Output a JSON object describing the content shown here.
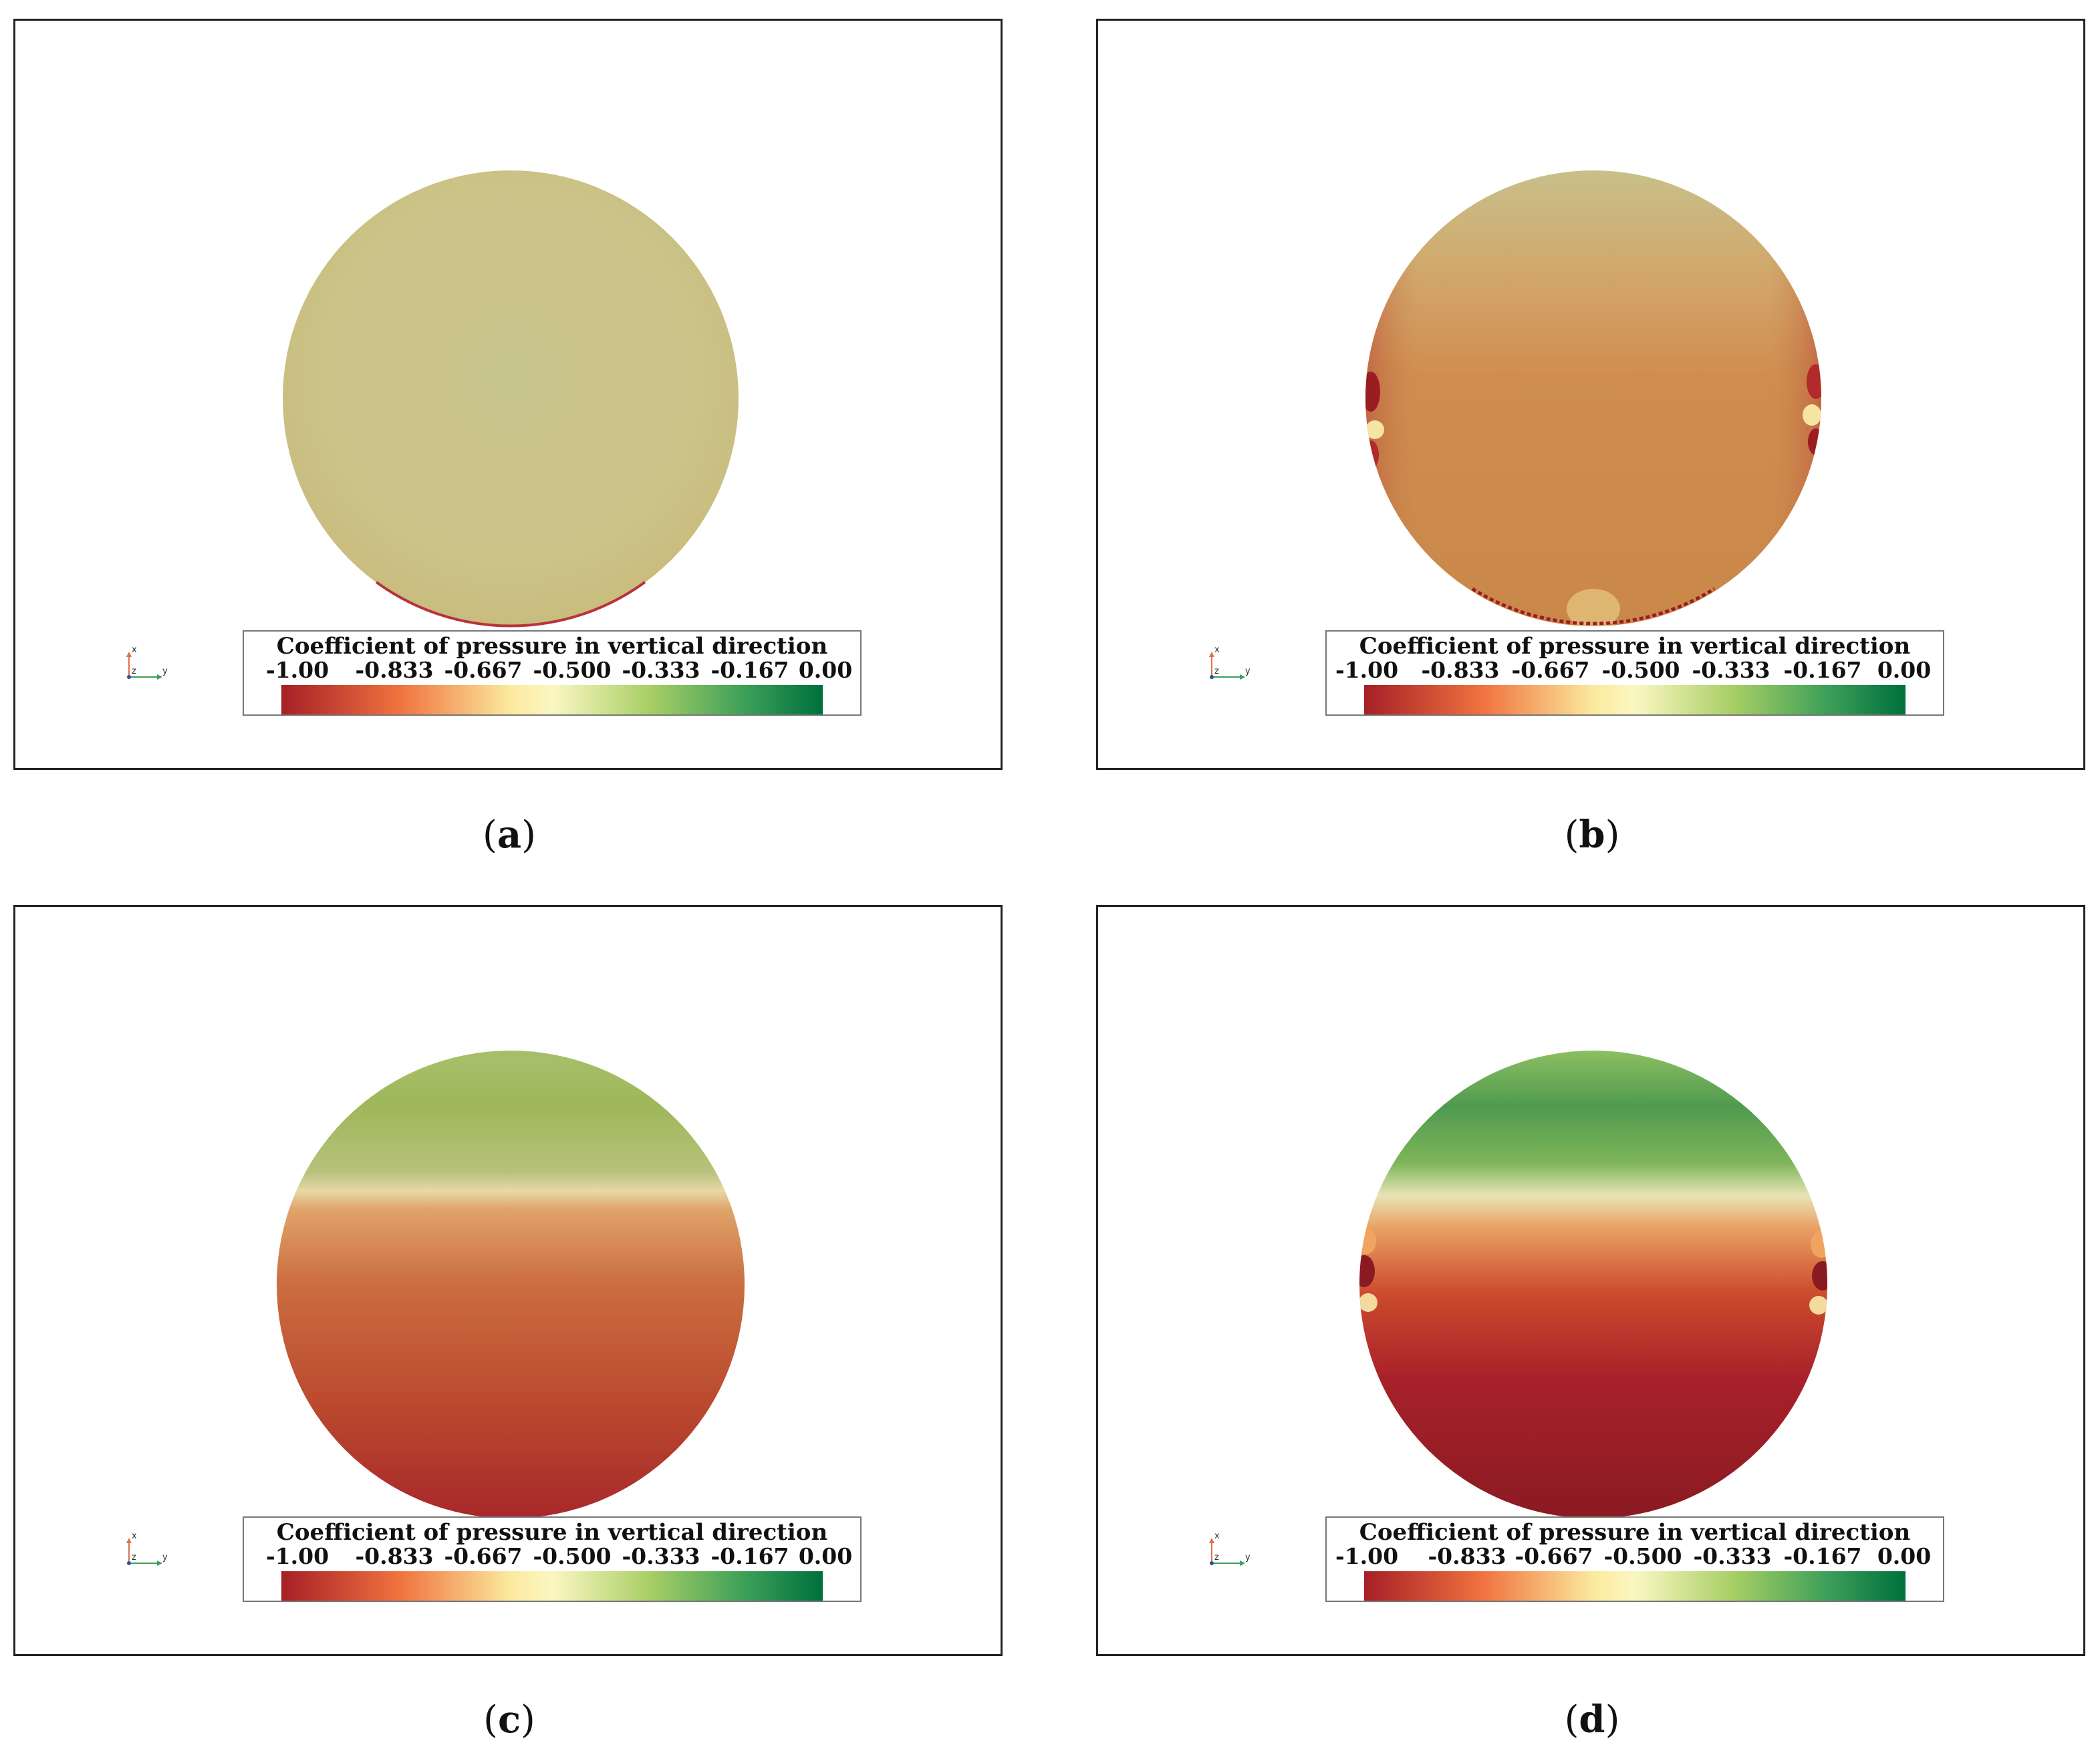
{
  "colors": {
    "scale": [
      "#a51f26",
      "#f0733f",
      "#fbe89c",
      "#fbf7c2",
      "#a9cf66",
      "#3a9e58",
      "#00703c"
    ]
  },
  "legend": {
    "title": "Coefficient of pressure in vertical direction",
    "ticks": [
      "-1.00",
      "-0.833",
      "-0.667",
      "-0.500",
      "-0.333",
      "-0.167",
      "0.00"
    ],
    "range": [
      -1.0,
      0.0
    ]
  },
  "axes_triad": {
    "x": "x",
    "y": "y",
    "z": "z"
  },
  "panels": [
    {
      "letter": "a",
      "open": "(",
      "close": ")"
    },
    {
      "letter": "b",
      "open": "(",
      "close": ")"
    },
    {
      "letter": "c",
      "open": "(",
      "close": ")"
    },
    {
      "letter": "d",
      "open": "(",
      "close": ")"
    }
  ]
}
